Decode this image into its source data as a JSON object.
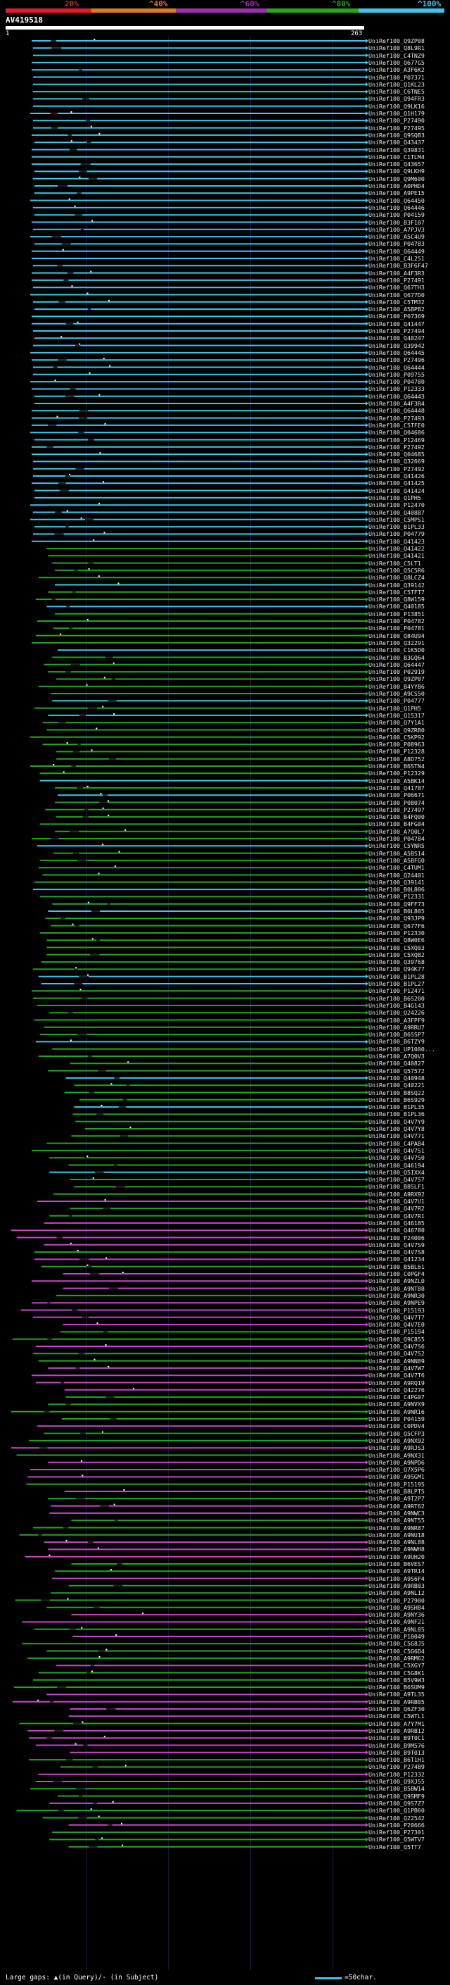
{
  "query": {
    "name": "AV419518",
    "start": "1",
    "end": "263"
  },
  "colors": {
    "red": "#e8182a",
    "orange": "#e07a1c",
    "purple": "#9b30b3",
    "green": "#25a522",
    "cyan": "#3ec7e8",
    "magenta": "#c846c8",
    "gap": "#202020",
    "grid": "#1a1a5a"
  },
  "legend": [
    {
      "label": "20%",
      "color": "#e8182a"
    },
    {
      "label": "^40%",
      "color": "#e07a1c"
    },
    {
      "label": "^60%",
      "color": "#9b30b3"
    },
    {
      "label": "^80%",
      "color": "#25a522"
    },
    {
      "label": "^100%",
      "color": "#3ec7e8"
    }
  ],
  "hits": [
    "UniRef100_Q9ZP08",
    "UniRef100_Q8L9R1",
    "UniRef100_C4TNZ9",
    "UniRef100_Q677G5",
    "UniRef100_A3F6K2",
    "UniRef100_P07371",
    "UniRef100_Q1KL23",
    "UniRef100_C6TNE5",
    "UniRef100_Q94FR3",
    "UniRef100_Q9LK16",
    "UniRef100_Q1H179",
    "UniRef100_P27490",
    "UniRef100_P27495",
    "UniRef100_Q9SQB3",
    "UniRef100_Q43437",
    "UniRef100_Q39831",
    "UniRef100_C1TLM4",
    "UniRef100_Q43657",
    "UniRef100_Q9LKH9",
    "UniRef100_Q9M600",
    "UniRef100_A0PHD4",
    "UniRef100_A9PE15",
    "UniRef100_Q64450",
    "UniRef100_Q64446",
    "UniRef100_P04159",
    "UniRef100_B3F107",
    "UniRef100_A7PJV3",
    "UniRef100_A5C4U9",
    "UniRef100_P04783",
    "UniRef100_Q64449",
    "UniRef100_C4L251",
    "UniRef100_B3F6F47",
    "UniRef100_A4F3R3",
    "UniRef100_P27491",
    "UniRef100_Q67TH3",
    "UniRef100_Q677D0",
    "UniRef100_C5TM32",
    "UniRef100_A5BPB2",
    "UniRef100_P07369",
    "UniRef100_Q41447",
    "UniRef100_P27494",
    "UniRef100_Q40247",
    "UniRef100_Q39942",
    "UniRef100_Q64445",
    "UniRef100_P27496",
    "UniRef100_Q64444",
    "UniRef100_P09755",
    "UniRef100_P04780",
    "UniRef100_P12333",
    "UniRef100_Q64443",
    "UniRef100_A4F3R4",
    "UniRef100_Q64448",
    "UniRef100_P27493",
    "UniRef100_C5TFE0",
    "UniRef100_Q04686",
    "UniRef100_P12469",
    "UniRef100_P27492",
    "UniRef100_Q04685",
    "UniRef100_Q32669",
    "UniRef100_P27492",
    "UniRef100_Q41426",
    "UniRef100_Q41425",
    "UniRef100_Q41424",
    "UniRef100_Q1PH5",
    "UniRef100_P12470",
    "UniRef100_Q40887",
    "UniRef100_C5MPS1",
    "UniRef100_B1PL33",
    "UniRef100_P04779",
    "UniRef100_Q41423",
    "UniRef100_Q41422",
    "UniRef100_Q41421",
    "UniRef100_C5LT1",
    "UniRef100_Q5C5R6",
    "UniRef100_Q8LCZ4",
    "UniRef100_Q39142",
    "UniRef100_C5TFT7",
    "UniRef100_Q8W159",
    "UniRef100_Q40185",
    "UniRef100_P13851",
    "UniRef100_P04782",
    "UniRef100_P04781",
    "UniRef100_Q84U94",
    "UniRef100_Q32291",
    "UniRef100_C1K5D0",
    "UniRef100_B3GQ64",
    "UniRef100_Q64447",
    "UniRef100_P02919",
    "UniRef100_Q9ZP07",
    "UniRef100_B4YYB6",
    "UniRef100_A9CS50",
    "UniRef100_P04777",
    "UniRef100_Q1PH5",
    "UniRef100_Q15317",
    "UniRef100_Q7Y1A1",
    "UniRef100_Q9ZRB0",
    "UniRef100_C5KP92",
    "UniRef100_P08963",
    "UniRef100_P12328",
    "UniRef100_A8D752",
    "UniRef100_B6STN4",
    "UniRef100_P12329",
    "UniRef100_A5BK14",
    "UniRef100_Q41787",
    "UniRef100_P06671",
    "UniRef100_P08074",
    "UniRef100_P27497",
    "UniRef100_B4FQ00",
    "UniRef100_B4FG04",
    "UniRef100_A7Q0L7",
    "UniRef100_P04784",
    "UniRef100_C5YNR5",
    "UniRef100_A5BS14",
    "UniRef100_A5BFG0",
    "UniRef100_C4TUM1",
    "UniRef100_Q24401",
    "UniRef100_Q39141",
    "UniRef100_B0L806",
    "UniRef100_P12331",
    "UniRef100_Q9FF73",
    "UniRef100_B0L805",
    "UniRef100_Q93JP9",
    "UniRef100_Q677F6",
    "UniRef100_P12330",
    "UniRef100_Q8W0E6",
    "UniRef100_C5XQ03",
    "UniRef100_C5XQB2",
    "UniRef100_Q39768",
    "UniRef100_Q94K77",
    "UniRef100_B1PL28",
    "UniRef100_B1PL27",
    "UniRef100_P12471",
    "UniRef100_B6S200",
    "UniRef100_B4G143",
    "UniRef100_Q24226",
    "UniRef100_A3FPF9",
    "UniRef100_A9RRU7",
    "UniRef100_B6SSP7",
    "UniRef100_B6TZY9",
    "UniRef100_UP1000...",
    "UniRef100_A7Q0V3",
    "UniRef100_Q40827",
    "UniRef100_Q57572",
    "UniRef100_Q40948",
    "UniRef100_Q40221",
    "UniRef100_B8SQ22",
    "UniRef100_B6S929",
    "UniRef100_B1PL35",
    "UniRef100_B1PL36",
    "UniRef100_Q4V7Y9",
    "UniRef100_Q4V7Y8",
    "UniRef100_Q4V771",
    "UniRef100_C4PA84",
    "UniRef100_Q4V7S1",
    "UniRef100_Q4V7S0",
    "UniRef100_Q46194",
    "UniRef100_Q5IXX4",
    "UniRef100_Q4V7S7",
    "UniRef100_B8SLF1",
    "UniRef100_A9RX92",
    "UniRef100_Q4V7U1",
    "UniRef100_Q4V7R2",
    "UniRef100_Q4V7R1",
    "UniRef100_Q46185",
    "UniRef100_Q46780",
    "UniRef100_P24006",
    "UniRef100_Q4V7S9",
    "UniRef100_Q4V7S8",
    "UniRef100_Q41234",
    "UniRef100_B5BL61",
    "UniRef100_C0PGF4",
    "UniRef100_A9NZL0",
    "UniRef100_A9NT88",
    "UniRef100_A9NR30",
    "UniRef100_A9NPE9",
    "UniRef100_P15193",
    "UniRef100_Q4V7T7",
    "UniRef100_Q4V7E0",
    "UniRef100_P15194",
    "UniRef100_Q9C855",
    "UniRef100_Q4V7S6",
    "UniRef100_Q4V7S2",
    "UniRef100_A9NN89",
    "UniRef100_Q4V7W7",
    "UniRef100_Q4V7T6",
    "UniRef100_A9RQ19",
    "UniRef100_Q42276",
    "UniRef100_C4PG07",
    "UniRef100_A9NVX9",
    "UniRef100_A9NR16",
    "UniRef100_P04159",
    "UniRef100_C0PDV4",
    "UniRef100_Q5CFP3",
    "UniRef100_A9NX92",
    "UniRef100_A9RJS3",
    "UniRef100_A9NX31",
    "UniRef100_A9NPD6",
    "UniRef100_Q7X5P6",
    "UniRef100_A9SGM1",
    "UniRef100_P15195",
    "UniRef100_B8LPT5",
    "UniRef100_A9T2P7",
    "UniRef100_A9RT62",
    "UniRef100_A9NWC3",
    "UniRef100_A9NT55",
    "UniRef100_A9NR87",
    "UniRef100_A9NU18",
    "UniRef100_A9NL88",
    "UniRef100_A9NWH8",
    "UniRef100_A9UH20",
    "UniRef100_B6VES7",
    "UniRef100_A9TR14",
    "UniRef100_A9S6F4",
    "UniRef100_A9RB03",
    "UniRef100_A9NL12",
    "UniRef100_P27900",
    "UniRef100_A9SH84",
    "UniRef100_A9NY36",
    "UniRef100_A9NF21",
    "UniRef100_A9NL05",
    "UniRef100_P10049",
    "UniRef100_C5G8J5",
    "UniRef100_C5G6D4",
    "UniRef100_A9RM62",
    "UniRef100_C5XGY7",
    "UniRef100_C5G8K1",
    "UniRef100_B5V9W3",
    "UniRef100_B6SUM9",
    "UniRef100_A9TL35",
    "UniRef100_A9RB05",
    "UniRef100_Q6ZF30",
    "UniRef100_C5WTL1",
    "UniRef100_A7Y7M1",
    "UniRef100_A9RB12",
    "UniRef100_B9T0C1",
    "UniRef100_B9M576",
    "UniRef100_B9T013",
    "UniRef100_B6T1H1",
    "UniRef100_P27489",
    "UniRef100_P12332",
    "UniRef100_Q9XJ55",
    "UniRef100_B5BW14",
    "UniRef100_Q9SMF9",
    "UniRef100_Q9S7Z7",
    "UniRef100_Q1PB60",
    "UniRef100_Q22542",
    "UniRef100_P20666",
    "UniRef100_P27301",
    "UniRef100_Q5WTV7",
    "UniRef100_Q5TT7"
  ],
  "footer": {
    "text": "Large gaps: ▲(in Query)/- (in Subject)",
    "scale_label": "=50char."
  }
}
